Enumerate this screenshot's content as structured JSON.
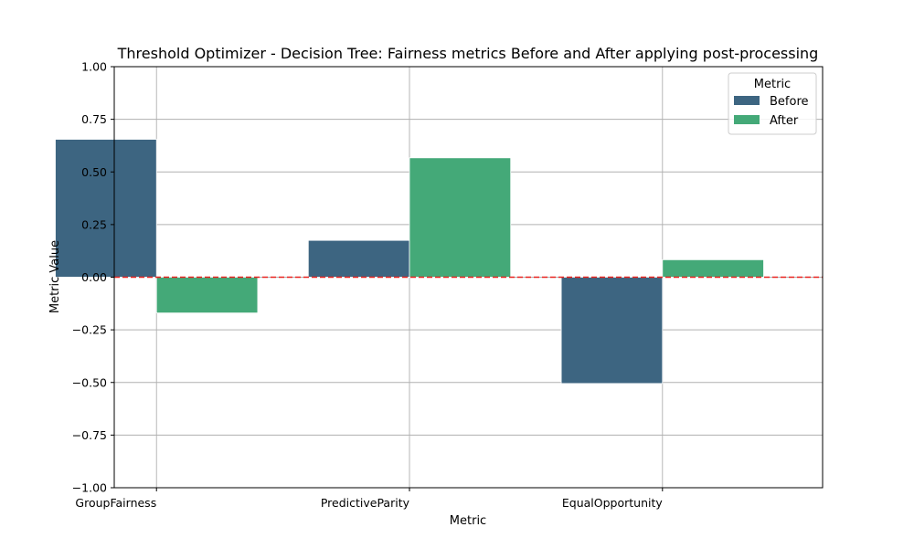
{
  "chart_data": {
    "type": "bar",
    "title": "Threshold Optimizer - Decision Tree: Fairness metrics Before and After applying post-processing",
    "xlabel": "Metric",
    "ylabel": "Metric Value",
    "categories": [
      "GroupFairness",
      "PredictiveParity",
      "EqualOpportunity"
    ],
    "series": [
      {
        "name": "Before",
        "values": [
          0.655,
          0.175,
          -0.505
        ],
        "color": "#3d6581"
      },
      {
        "name": "After",
        "values": [
          -0.17,
          0.567,
          0.083
        ],
        "color": "#44a978"
      }
    ],
    "ylim": [
      -1.0,
      1.0
    ],
    "yticks": [
      -1.0,
      -0.75,
      -0.5,
      -0.25,
      0.0,
      0.25,
      0.5,
      0.75,
      1.0
    ],
    "ytick_labels": [
      "−1.00",
      "−0.75",
      "−0.50",
      "−0.25",
      "0.00",
      "0.25",
      "0.50",
      "0.75",
      "1.00"
    ],
    "grid": true,
    "reference_line": {
      "y": 0.0,
      "color": "#e8231f",
      "style": "dashed"
    },
    "legend": {
      "title": "Metric",
      "placement": "top-right"
    }
  }
}
